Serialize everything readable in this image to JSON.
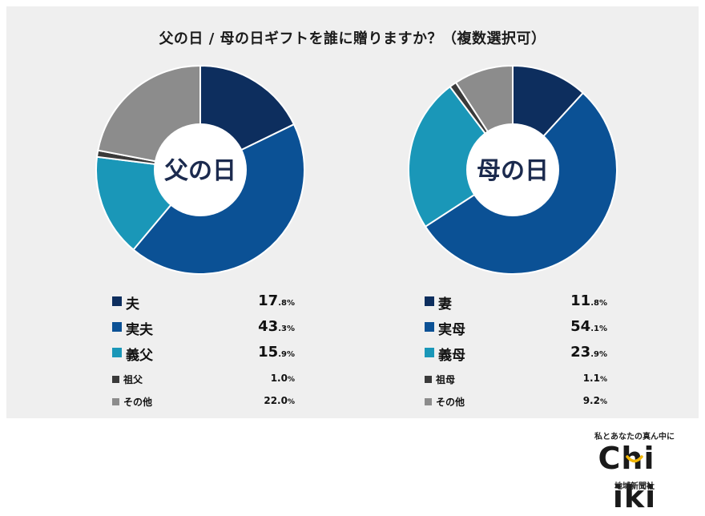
{
  "title": "父の日 / 母の日ギフトを誰に贈りますか？（複数選択可）",
  "chart_data": [
    {
      "type": "pie",
      "center_label": "父の日",
      "slices": [
        {
          "label": "夫",
          "value": 17.8,
          "color": "#0d2e5e",
          "emphasis": true
        },
        {
          "label": "実夫",
          "value": 43.3,
          "color": "#0b5195",
          "emphasis": true
        },
        {
          "label": "義父",
          "value": 15.9,
          "color": "#1a97b8",
          "emphasis": true
        },
        {
          "label": "祖父",
          "value": 1.0,
          "color": "#3a3a3a",
          "emphasis": false
        },
        {
          "label": "その他",
          "value": 22.0,
          "color": "#8c8c8c",
          "emphasis": false
        }
      ]
    },
    {
      "type": "pie",
      "center_label": "母の日",
      "slices": [
        {
          "label": "妻",
          "value": 11.8,
          "color": "#0d2e5e",
          "emphasis": true
        },
        {
          "label": "実母",
          "value": 54.1,
          "color": "#0b5195",
          "emphasis": true
        },
        {
          "label": "義母",
          "value": 23.9,
          "color": "#1a97b8",
          "emphasis": true
        },
        {
          "label": "祖母",
          "value": 1.1,
          "color": "#3a3a3a",
          "emphasis": false
        },
        {
          "label": "その他",
          "value": 9.2,
          "color": "#8c8c8c",
          "emphasis": false
        }
      ]
    }
  ],
  "value_unit": "%",
  "brand": {
    "tagline": "私とあなたの真ん中に",
    "logo_left": "Chi",
    "logo_right": "iki",
    "company": "地域新聞社",
    "accent_color": "#f2b705"
  }
}
